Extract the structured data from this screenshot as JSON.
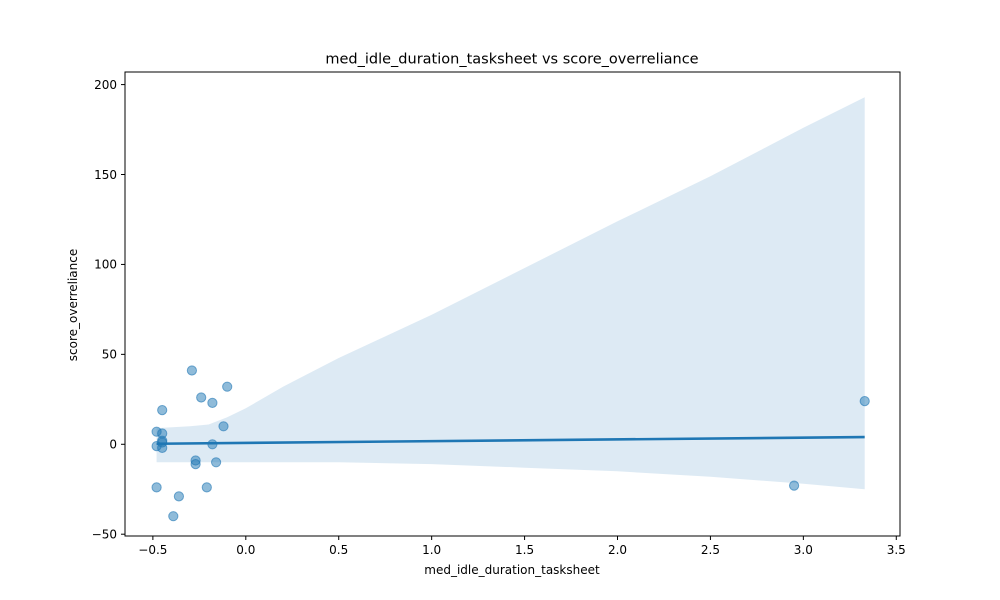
{
  "chart_data": {
    "type": "scatter",
    "title": "med_idle_duration_tasksheet vs score_overreliance",
    "xlabel": "med_idle_duration_tasksheet",
    "ylabel": "score_overreliance",
    "xlim": [
      -0.65,
      3.52
    ],
    "ylim": [
      -51,
      207
    ],
    "xticks": [
      -0.5,
      0.0,
      0.5,
      1.0,
      1.5,
      2.0,
      2.5,
      3.0,
      3.5
    ],
    "xtick_labels": [
      "−0.5",
      "0.0",
      "0.5",
      "1.0",
      "1.5",
      "2.0",
      "2.5",
      "3.0",
      "3.5"
    ],
    "yticks": [
      -50,
      0,
      50,
      100,
      150,
      200
    ],
    "ytick_labels": [
      "−50",
      "0",
      "50",
      "100",
      "150",
      "200"
    ],
    "grid": false,
    "colors": {
      "points": "#1f77b4",
      "line": "#1f77b4",
      "band": "#c6dcec"
    },
    "points": [
      {
        "x": -0.48,
        "y": 7
      },
      {
        "x": -0.48,
        "y": -1
      },
      {
        "x": -0.48,
        "y": -24
      },
      {
        "x": -0.45,
        "y": 19
      },
      {
        "x": -0.45,
        "y": 6
      },
      {
        "x": -0.45,
        "y": 2
      },
      {
        "x": -0.45,
        "y": 1
      },
      {
        "x": -0.45,
        "y": -2
      },
      {
        "x": -0.39,
        "y": -40
      },
      {
        "x": -0.36,
        "y": -29
      },
      {
        "x": -0.29,
        "y": 41
      },
      {
        "x": -0.27,
        "y": -9
      },
      {
        "x": -0.27,
        "y": -11
      },
      {
        "x": -0.24,
        "y": 26
      },
      {
        "x": -0.21,
        "y": -24
      },
      {
        "x": -0.18,
        "y": 23
      },
      {
        "x": -0.18,
        "y": 0
      },
      {
        "x": -0.16,
        "y": -10
      },
      {
        "x": -0.12,
        "y": 10
      },
      {
        "x": -0.1,
        "y": 32
      },
      {
        "x": 2.95,
        "y": -23
      },
      {
        "x": 3.33,
        "y": 24
      }
    ],
    "regression": {
      "line": [
        {
          "x": -0.48,
          "y": 0.3
        },
        {
          "x": 3.33,
          "y": 4
        }
      ],
      "ci_upper": [
        {
          "x": -0.48,
          "y": 9
        },
        {
          "x": -0.3,
          "y": 10
        },
        {
          "x": -0.2,
          "y": 11
        },
        {
          "x": -0.1,
          "y": 15
        },
        {
          "x": 0.0,
          "y": 20
        },
        {
          "x": 0.2,
          "y": 32
        },
        {
          "x": 0.5,
          "y": 48
        },
        {
          "x": 1.0,
          "y": 72
        },
        {
          "x": 1.5,
          "y": 98
        },
        {
          "x": 2.0,
          "y": 124
        },
        {
          "x": 2.5,
          "y": 149
        },
        {
          "x": 3.0,
          "y": 176
        },
        {
          "x": 3.33,
          "y": 193
        }
      ],
      "ci_lower": [
        {
          "x": 3.33,
          "y": -25
        },
        {
          "x": 3.0,
          "y": -22
        },
        {
          "x": 2.5,
          "y": -18
        },
        {
          "x": 2.0,
          "y": -15
        },
        {
          "x": 1.5,
          "y": -13
        },
        {
          "x": 1.0,
          "y": -11
        },
        {
          "x": 0.5,
          "y": -10
        },
        {
          "x": 0.0,
          "y": -10
        },
        {
          "x": -0.2,
          "y": -10
        },
        {
          "x": -0.48,
          "y": -10
        }
      ]
    }
  }
}
